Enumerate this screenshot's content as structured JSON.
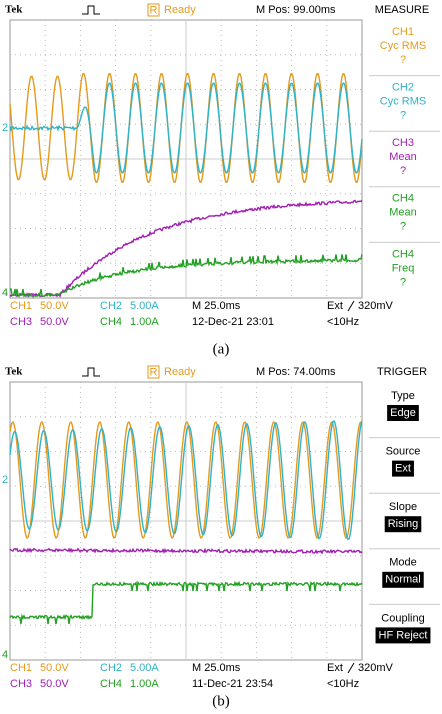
{
  "panels": [
    {
      "brand": "Tek",
      "status_icon": "R",
      "status": "Ready",
      "position": "M Pos: 99.00ms",
      "menu_title": "MEASURE",
      "menu": [
        {
          "lines": [
            "CH1",
            "Cyc RMS",
            "?"
          ],
          "color": "#e59a1c"
        },
        {
          "lines": [
            "CH2",
            "Cyc RMS",
            "?"
          ],
          "color": "#2fb3c6"
        },
        {
          "lines": [
            "CH3",
            "Mean",
            "?"
          ],
          "color": "#a11fb0"
        },
        {
          "lines": [
            "CH4",
            "Mean",
            "?"
          ],
          "color": "#22a022"
        },
        {
          "lines": [
            "CH4",
            "Freq",
            "?"
          ],
          "color": "#22a022"
        }
      ],
      "markers": [
        "2",
        "4"
      ],
      "readouts": [
        {
          "channel": "CH1",
          "scale": "50.0V",
          "color": "#e59a1c"
        },
        {
          "channel": "CH2",
          "scale": "5.00A",
          "color": "#2fb3c6"
        },
        {
          "channel": "CH3",
          "scale": "50.0V",
          "color": "#a11fb0"
        },
        {
          "channel": "CH4",
          "scale": "1.00A",
          "color": "#22a022"
        }
      ],
      "timebase": "M 25.0ms",
      "date": "12-Dec-21 23:01",
      "trigger": "Ext",
      "trigger_level": "320mV",
      "frequency": "<10Hz",
      "caption": "(a)"
    },
    {
      "brand": "Tek",
      "status_icon": "R",
      "status": "Ready",
      "position": "M Pos: 74.00ms",
      "menu_title": "TRIGGER",
      "menu": [
        {
          "label": "Type",
          "value": "Edge"
        },
        {
          "label": "Source",
          "value": "Ext"
        },
        {
          "label": "Slope",
          "value": "Rising"
        },
        {
          "label": "Mode",
          "value": "Normal"
        },
        {
          "label": "Coupling",
          "value": "HF Reject"
        }
      ],
      "markers": [
        "2",
        "4"
      ],
      "readouts": [
        {
          "channel": "CH1",
          "scale": "50.0V",
          "color": "#e59a1c"
        },
        {
          "channel": "CH2",
          "scale": "5.00A",
          "color": "#2fb3c6"
        },
        {
          "channel": "CH3",
          "scale": "50.0V",
          "color": "#a11fb0"
        },
        {
          "channel": "CH4",
          "scale": "1.00A",
          "color": "#22a022"
        }
      ],
      "timebase": "M 25.0ms",
      "date": "11-Dec-21 23:54",
      "trigger": "Ext",
      "trigger_level": "320mV",
      "frequency": "<10Hz",
      "caption": "(b)"
    }
  ]
}
